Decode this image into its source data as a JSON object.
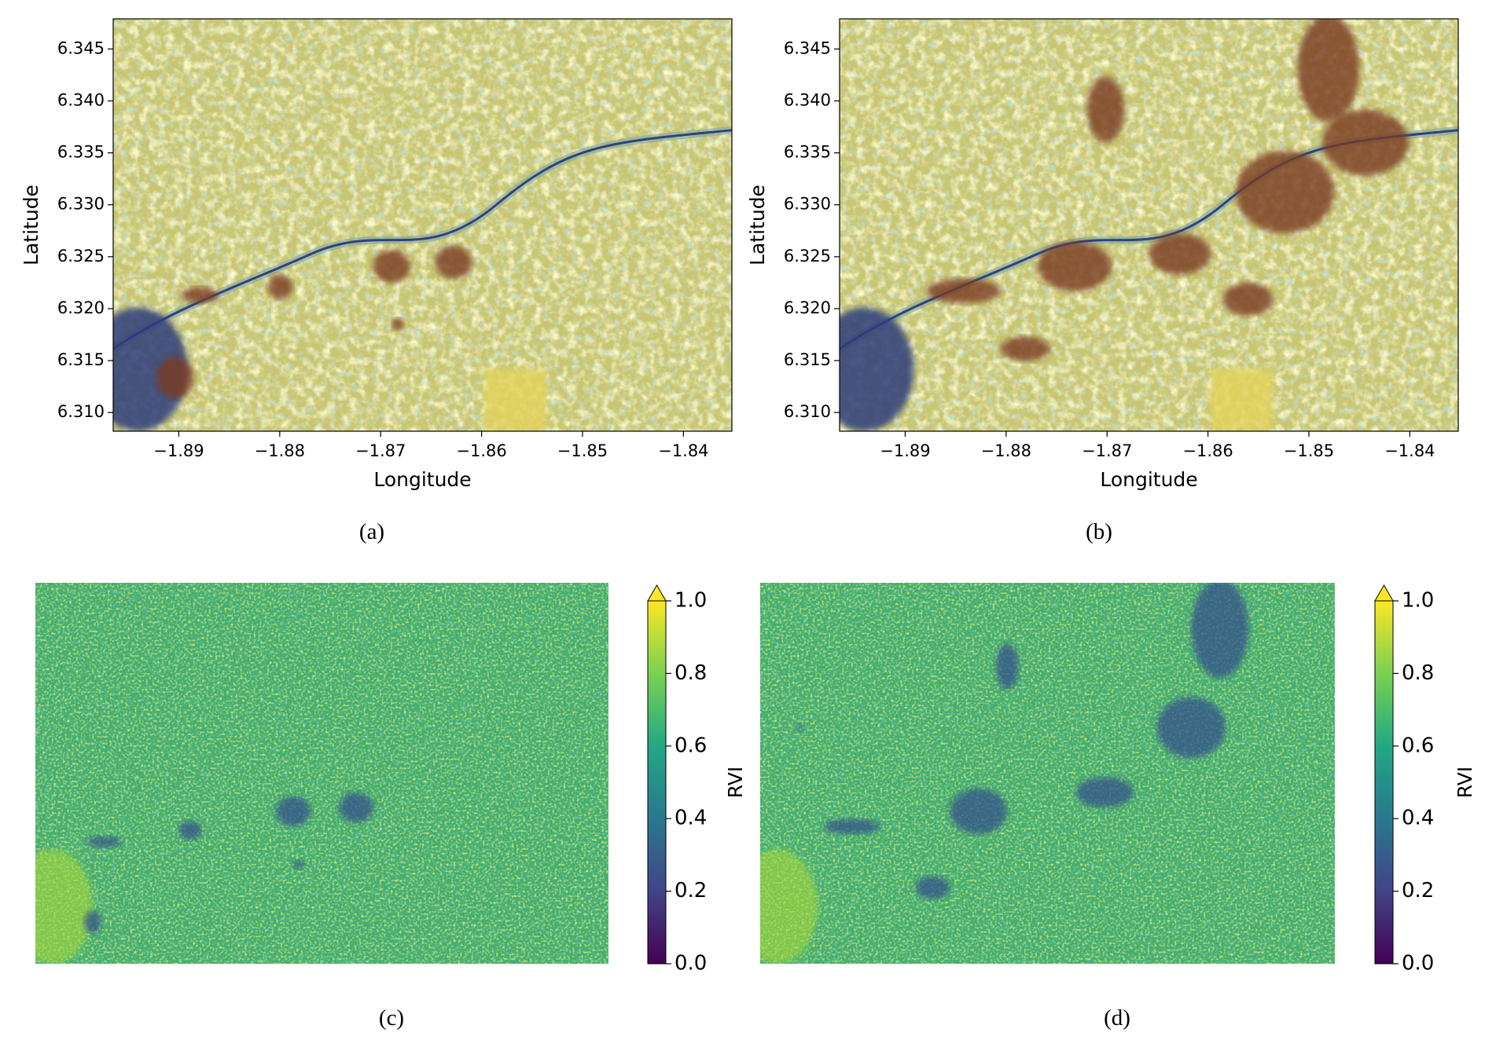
{
  "chart_data": [
    {
      "type": "image",
      "caption": "(a)",
      "xlabel": "Longitude",
      "ylabel": "Latitude",
      "xlim": [
        -1.8965,
        -1.8352
      ],
      "xticks": [
        {
          "value": -1.89,
          "label": "−1.89"
        },
        {
          "value": -1.88,
          "label": "−1.88"
        },
        {
          "value": -1.87,
          "label": "−1.87"
        },
        {
          "value": -1.86,
          "label": "−1.86"
        },
        {
          "value": -1.85,
          "label": "−1.85"
        },
        {
          "value": -1.84,
          "label": "−1.84"
        }
      ],
      "ylim": [
        6.3082,
        6.3479
      ],
      "yticks": [
        {
          "value": 6.31,
          "label": "6.310"
        },
        6.315,
        {
          "value": 6.32,
          "label": "6.320"
        },
        6.325,
        {
          "value": 6.33,
          "label": "6.330"
        },
        6.335,
        {
          "value": 6.34,
          "label": "6.340"
        },
        6.345
      ]
    },
    {
      "type": "image",
      "caption": "(b)",
      "xlabel": "Longitude",
      "ylabel": "Latitude",
      "xlim": [
        -1.8965,
        -1.8352
      ],
      "xticks": [
        {
          "value": -1.89,
          "label": "−1.89"
        },
        {
          "value": -1.88,
          "label": "−1.88"
        },
        {
          "value": -1.87,
          "label": "−1.87"
        },
        {
          "value": -1.86,
          "label": "−1.86"
        },
        {
          "value": -1.85,
          "label": "−1.85"
        },
        {
          "value": -1.84,
          "label": "−1.84"
        }
      ],
      "ylim": [
        6.3082,
        6.3479
      ],
      "yticks": [
        {
          "value": 6.31,
          "label": "6.310"
        },
        6.315,
        {
          "value": 6.32,
          "label": "6.320"
        },
        6.325,
        {
          "value": 6.33,
          "label": "6.330"
        },
        6.335,
        {
          "value": 6.34,
          "label": "6.340"
        },
        6.345
      ]
    },
    {
      "type": "heatmap",
      "caption": "(c)",
      "colorbar_label": "RVI",
      "clim": [
        0,
        1
      ],
      "cticks": [
        {
          "value": 0,
          "label": "0.0"
        },
        0.2,
        0.4,
        0.6,
        0.8,
        {
          "value": 1,
          "label": "1.0"
        }
      ],
      "colorbar_extend": "max"
    },
    {
      "type": "heatmap",
      "caption": "(d)",
      "colorbar_label": "RVI",
      "clim": [
        0,
        1
      ],
      "cticks": [
        {
          "value": 0,
          "label": "0.0"
        },
        0.2,
        0.4,
        0.6,
        0.8,
        {
          "value": 1,
          "label": "1.0"
        }
      ],
      "colorbar_extend": "max"
    }
  ]
}
